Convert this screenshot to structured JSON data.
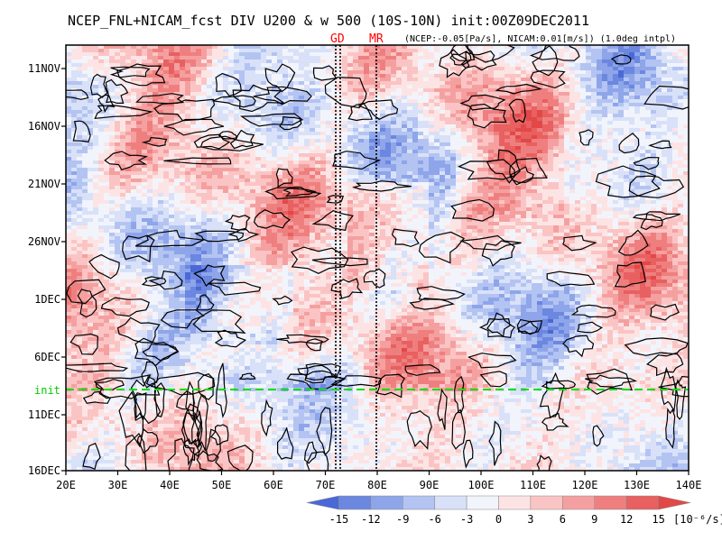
{
  "chart_data": {
    "type": "heatmap",
    "title": "NCEP_FNL+NICAM_fcst DIV U200 & w 500 (10S-10N) init:00Z09DEC2011",
    "subtitle": "(NCEP:-0.05[Pa/s], NICAM:0.01[m/s]) (1.0deg intpl)",
    "x_axis": {
      "ticks": [
        "20E",
        "30E",
        "40E",
        "50E",
        "60E",
        "70E",
        "80E",
        "90E",
        "100E",
        "110E",
        "120E",
        "130E",
        "140E"
      ],
      "range": [
        20,
        140
      ]
    },
    "y_axis": {
      "ticks": [
        "11NOV",
        "16NOV",
        "21NOV",
        "26NOV",
        "1DEC",
        "6DEC",
        "11DEC",
        "16DEC"
      ],
      "range": [
        "08NOV2011",
        "16DEC2011"
      ]
    },
    "markers": [
      {
        "label": "GD",
        "lon": [
          72.5,
          73.3
        ]
      },
      {
        "label": "MR",
        "lon": [
          80
        ]
      }
    ],
    "init_line": {
      "label": "init",
      "date": "09DEC2011"
    },
    "colorbar": {
      "ticks": [
        "-15",
        "-12",
        "-9",
        "-6",
        "-3",
        "0",
        "3",
        "6",
        "9",
        "12",
        "15"
      ],
      "unit": "[10⁻⁶/s]",
      "colors": [
        "#4a69d6",
        "#6b87e0",
        "#8ea5ea",
        "#b3c4f2",
        "#d8e1f8",
        "#f2f4fc",
        "#fde4e4",
        "#fbc4c4",
        "#f5a0a0",
        "#ef7f7f",
        "#e86060",
        "#e24848"
      ]
    }
  }
}
